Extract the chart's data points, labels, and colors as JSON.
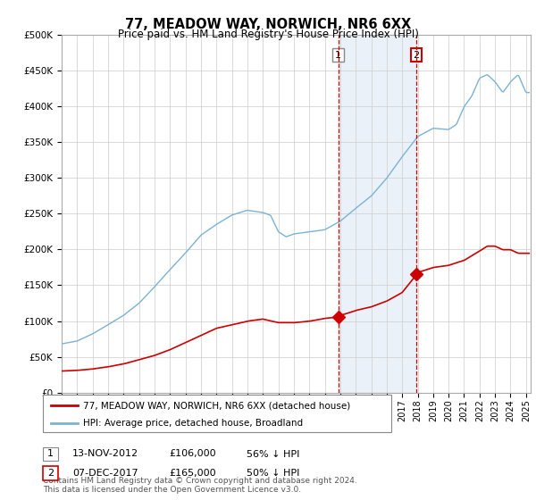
{
  "title": "77, MEADOW WAY, NORWICH, NR6 6XX",
  "subtitle": "Price paid vs. HM Land Registry's House Price Index (HPI)",
  "ylabel_ticks": [
    "£0",
    "£50K",
    "£100K",
    "£150K",
    "£200K",
    "£250K",
    "£300K",
    "£350K",
    "£400K",
    "£450K",
    "£500K"
  ],
  "ytick_values": [
    0,
    50000,
    100000,
    150000,
    200000,
    250000,
    300000,
    350000,
    400000,
    450000,
    500000
  ],
  "xlim_start": 1995.0,
  "xlim_end": 2025.3,
  "ylim": [
    0,
    500000
  ],
  "hpi_color": "#7ab3d4",
  "price_color": "#cc0000",
  "vline_color": "#cc0000",
  "sale1_x": 2012.87,
  "sale1_y": 106000,
  "sale2_x": 2017.92,
  "sale2_y": 165000,
  "annotation1_label": "1",
  "annotation2_label": "2",
  "legend_line1": "77, MEADOW WAY, NORWICH, NR6 6XX (detached house)",
  "legend_line2": "HPI: Average price, detached house, Broadland",
  "table_row1": [
    "1",
    "13-NOV-2012",
    "£106,000",
    "56% ↓ HPI"
  ],
  "table_row2": [
    "2",
    "07-DEC-2017",
    "£165,000",
    "50% ↓ HPI"
  ],
  "footnote": "Contains HM Land Registry data © Crown copyright and database right 2024.\nThis data is licensed under the Open Government Licence v3.0.",
  "background_color": "#ffffff",
  "grid_color": "#cccccc",
  "shaded_region_color": "#dce9f5",
  "shaded_region_alpha": 0.6,
  "hpi_knots_x": [
    1995,
    1996,
    1997,
    1998,
    1999,
    2000,
    2001,
    2002,
    2003,
    2004,
    2005,
    2006,
    2007,
    2008,
    2008.5,
    2009,
    2009.5,
    2010,
    2011,
    2012,
    2013,
    2014,
    2015,
    2016,
    2017,
    2018,
    2019,
    2020,
    2020.5,
    2021,
    2021.5,
    2022,
    2022.5,
    2023,
    2023.5,
    2024,
    2024.5,
    2025
  ],
  "hpi_knots_y": [
    68000,
    72000,
    82000,
    95000,
    108000,
    125000,
    148000,
    172000,
    195000,
    220000,
    235000,
    248000,
    255000,
    252000,
    248000,
    225000,
    218000,
    222000,
    225000,
    228000,
    240000,
    258000,
    275000,
    300000,
    330000,
    358000,
    370000,
    368000,
    375000,
    400000,
    415000,
    440000,
    445000,
    435000,
    420000,
    435000,
    445000,
    420000
  ],
  "price_knots_x": [
    1995,
    1996,
    1997,
    1998,
    1999,
    2000,
    2001,
    2002,
    2003,
    2004,
    2005,
    2006,
    2007,
    2008,
    2009,
    2010,
    2011,
    2012,
    2012.87,
    2013,
    2014,
    2015,
    2016,
    2017,
    2017.92,
    2018,
    2019,
    2020,
    2021,
    2022,
    2022.5,
    2023,
    2023.5,
    2024,
    2024.5,
    2025
  ],
  "price_knots_y": [
    30000,
    31000,
    33000,
    36000,
    40000,
    46000,
    52000,
    60000,
    70000,
    80000,
    90000,
    95000,
    100000,
    103000,
    98000,
    98000,
    100000,
    104000,
    106000,
    108000,
    115000,
    120000,
    128000,
    140000,
    165000,
    168000,
    175000,
    178000,
    185000,
    198000,
    205000,
    205000,
    200000,
    200000,
    195000,
    195000
  ]
}
